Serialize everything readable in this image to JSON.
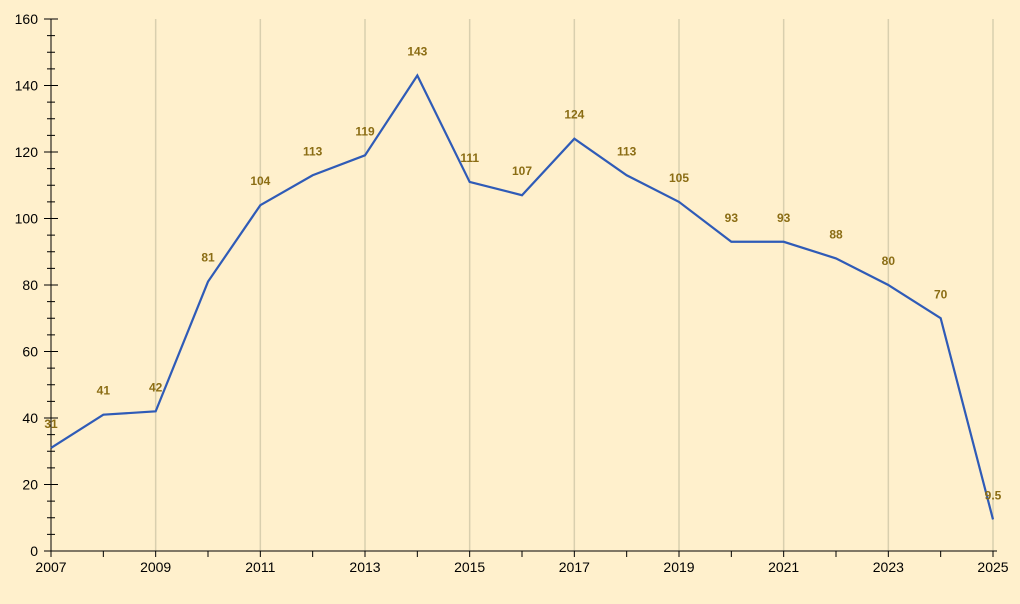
{
  "colors": {
    "background": "#fff0cc",
    "line": "#2f5bb7",
    "grid": "#d9cfae",
    "axis": "#000000",
    "data_label": "#8b6d14"
  },
  "chart_data": {
    "type": "line",
    "title": "",
    "xlabel": "",
    "ylabel": "",
    "xlim": [
      2007,
      2025
    ],
    "ylim": [
      0,
      160
    ],
    "x_ticks": [
      "2007",
      "2009",
      "2011",
      "2013",
      "2015",
      "2017",
      "2019",
      "2021",
      "2023",
      "2025"
    ],
    "y_ticks": [
      "0",
      "20",
      "40",
      "60",
      "80",
      "100",
      "120",
      "140",
      "160"
    ],
    "grid": "vertical",
    "legend": "none",
    "series": [
      {
        "x": [
          2007,
          2008,
          2009,
          2010,
          2011,
          2012,
          2013,
          2014,
          2015,
          2016,
          2017,
          2018,
          2019,
          2020,
          2021,
          2022,
          2023,
          2024,
          2025
        ],
        "values": [
          31,
          41,
          42,
          81,
          104,
          113,
          119,
          143,
          111,
          107,
          124,
          113,
          105,
          93,
          93,
          88,
          80,
          70,
          9.5
        ],
        "labels": [
          "31",
          "41",
          "42",
          "81",
          "104",
          "113",
          "119",
          "143",
          "111",
          "107",
          "124",
          "113",
          "105",
          "93",
          "93",
          "88",
          "80",
          "70",
          "9.5"
        ]
      }
    ]
  }
}
